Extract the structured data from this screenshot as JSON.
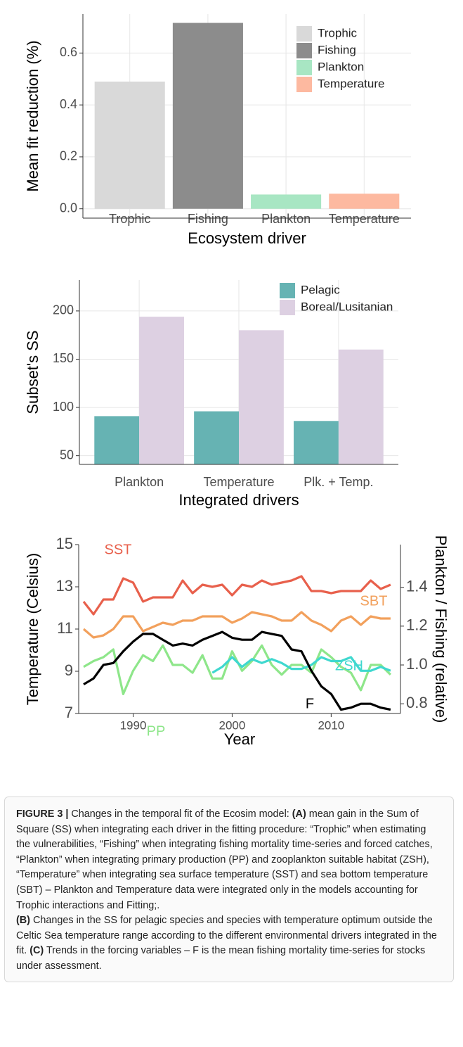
{
  "chart_data": [
    {
      "type": "bar",
      "categories": [
        "Trophic",
        "Fishing",
        "Plankton",
        "Temperature"
      ],
      "values": [
        0.49,
        0.716,
        0.055,
        0.058
      ],
      "colors": [
        "#d9d9d9",
        "#8c8c8c",
        "#a8e6c3",
        "#fdb9a0"
      ],
      "ylabel": "Mean fit reduction (%)",
      "xlabel": "Ecosystem driver",
      "ylim": [
        -0.036,
        0.75
      ],
      "yticks": [
        {
          "value": 0,
          "label": "0.0"
        },
        0.2,
        0.4,
        0.6
      ],
      "grid": true,
      "legend": "top-right"
    },
    {
      "type": "grouped-bar",
      "categories": [
        "Plankton",
        "Temperature",
        "Plk. + Temp."
      ],
      "series": [
        {
          "name": "Pelagic",
          "color": "#66b3b3",
          "values": [
            91,
            96,
            86
          ]
        },
        {
          "name": "Boreal/Lusitanian",
          "color": "#ddd0e2",
          "values": [
            194,
            180,
            160
          ]
        }
      ],
      "ylabel": "Subset's SS",
      "xlabel": "Integrated drivers",
      "ylim": [
        41,
        232
      ],
      "yticks": [
        50,
        100,
        150,
        200
      ],
      "grid": true,
      "legend": "top-right"
    },
    {
      "type": "line",
      "x": [
        1985,
        1986,
        1987,
        1988,
        1989,
        1990,
        1991,
        1992,
        1993,
        1994,
        1995,
        1996,
        1997,
        1998,
        1999,
        2000,
        2001,
        2002,
        2003,
        2004,
        2005,
        2006,
        2007,
        2008,
        2009,
        2010,
        2011,
        2012,
        2013,
        2014,
        2015,
        2016
      ],
      "series": [
        {
          "name": "SST",
          "color": "#e8604c",
          "axis": "y",
          "values": [
            12.3,
            11.7,
            12.4,
            12.4,
            13.4,
            13.2,
            12.3,
            12.5,
            12.5,
            12.5,
            13.3,
            12.7,
            13.1,
            13.0,
            13.1,
            12.6,
            13.1,
            13.0,
            13.3,
            13.1,
            13.2,
            13.3,
            13.5,
            12.8,
            12.8,
            12.7,
            12.8,
            12.8,
            12.8,
            13.3,
            12.9,
            13.1
          ]
        },
        {
          "name": "SBT",
          "color": "#f2a05c",
          "axis": "y",
          "values": [
            11.0,
            10.6,
            10.7,
            11.0,
            11.6,
            11.6,
            10.9,
            11.1,
            11.3,
            11.2,
            11.4,
            11.4,
            11.6,
            11.6,
            11.6,
            11.3,
            11.5,
            11.8,
            11.7,
            11.6,
            11.4,
            11.4,
            11.8,
            11.4,
            11.2,
            10.9,
            11.4,
            11.6,
            11.2,
            11.6,
            11.5,
            11.5
          ]
        },
        {
          "name": "PP",
          "color": "#8ee68a",
          "axis": "y2",
          "values": [
            0.99,
            1.02,
            1.04,
            1.08,
            0.85,
            0.97,
            1.05,
            1.02,
            1.1,
            1.0,
            1.0,
            0.96,
            1.05,
            0.93,
            0.93,
            1.07,
            0.97,
            1.02,
            1.1,
            1.0,
            0.95,
            1.0,
            1.0,
            0.96,
            1.08,
            1.04,
            0.99,
            0.96,
            0.87,
            1.0,
            1.0,
            0.95
          ]
        },
        {
          "name": "ZSH",
          "color": "#3fd8cf",
          "axis": "y2",
          "values": [
            null,
            null,
            null,
            null,
            null,
            null,
            null,
            null,
            null,
            null,
            null,
            null,
            null,
            0.96,
            0.99,
            1.04,
            0.99,
            1.03,
            1.01,
            1.03,
            1.01,
            0.98,
            0.98,
            1.0,
            1.04,
            1.02,
            1.02,
            1.04,
            0.97,
            0.97,
            0.99,
            0.97
          ]
        },
        {
          "name": "F",
          "color": "#000000",
          "axis": "y2",
          "values": [
            0.9,
            0.93,
            1.0,
            1.01,
            1.07,
            1.12,
            1.16,
            1.16,
            1.13,
            1.1,
            1.11,
            1.1,
            1.13,
            1.15,
            1.17,
            1.14,
            1.13,
            1.13,
            1.17,
            1.16,
            1.15,
            1.08,
            1.07,
            0.97,
            0.89,
            0.85,
            0.77,
            0.78,
            0.8,
            0.8,
            0.78,
            0.77
          ]
        }
      ],
      "ylabel": "Temperature (Celsius)",
      "y2label": "Plankton / Fishing (relative)",
      "xlabel": "Year",
      "xlim": [
        1984.5,
        2017
      ],
      "xticks": [
        1990,
        2000,
        2010
      ],
      "ylim": [
        7,
        15
      ],
      "yticks": [
        7,
        9,
        11,
        13,
        15
      ],
      "y2lim": [
        0.75,
        1.62
      ],
      "y2ticks": [
        0.8,
        {
          "value": 1,
          "label": "1.0"
        },
        1.2,
        1.4
      ],
      "grid": false
    }
  ],
  "caption": [
    "FIGURE 3 |",
    "Changes in the temporal fit of the Ecosim model:",
    "(A)",
    "mean gain in the Sum of Square (SS) when integrating each driver in the fitting procedure: “Trophic” when estimating the vulnerabilities, “Fishing” when integrating fishing mortality time-series and forced catches, “Plankton” when integrating primary production (PP) and zooplankton suitable habitat (ZSH), “Temperature” when integrating sea surface temperature (SST) and sea bottom temperature (SBT) – Plankton and Temperature data were integrated only in the models accounting for Trophic interactions and Fitting;.",
    "(B)",
    "Changes in the SS for pelagic species and species with temperature optimum outside the Celtic Sea temperature range according to the different environmental drivers integrated in the fit.",
    "(C)",
    "Trends in the forcing variables – F is the mean fishing mortality time-series for stocks under assessment."
  ]
}
